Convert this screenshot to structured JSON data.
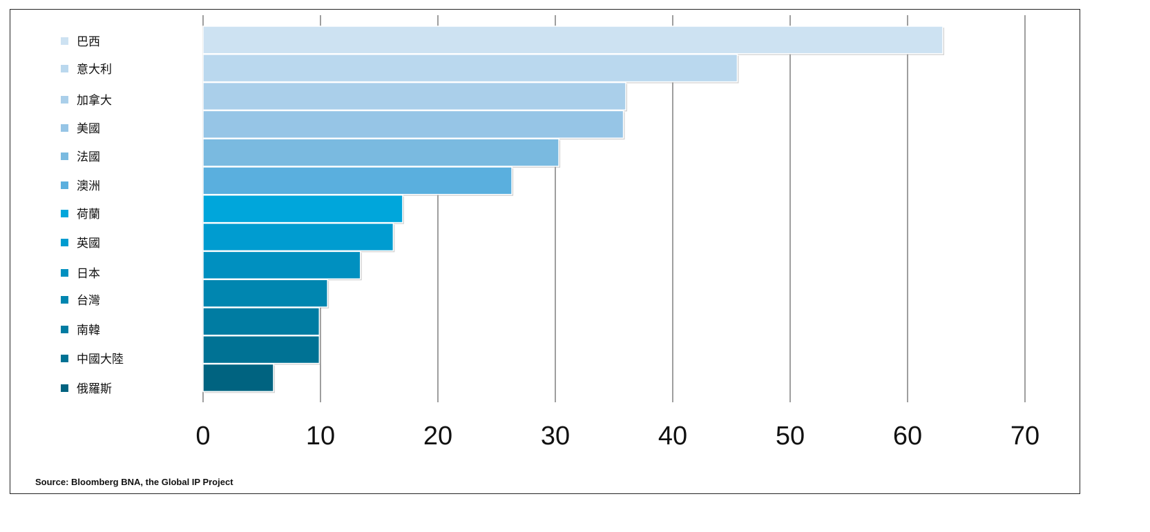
{
  "chart_data": {
    "type": "bar",
    "orientation": "horizontal",
    "categories": [
      "巴西",
      "意大利",
      "加拿大",
      "美國",
      "法國",
      "澳洲",
      "荷蘭",
      "英國",
      "日本",
      "台灣",
      "南韓",
      "中國大陸",
      "俄羅斯"
    ],
    "values": [
      63,
      45.5,
      36,
      35.8,
      30.3,
      26.3,
      17,
      16.2,
      13.4,
      10.6,
      9.9,
      9.9,
      6
    ],
    "colors": [
      "#cde2f2",
      "#bad8ee",
      "#aacfea",
      "#96c5e6",
      "#7abae0",
      "#5aafde",
      "#00a6db",
      "#009cd0",
      "#0090c0",
      "#0086b0",
      "#007ca2",
      "#007294",
      "#006380"
    ],
    "xlim": [
      0,
      70
    ],
    "xticks": [
      0,
      10,
      20,
      30,
      40,
      50,
      60,
      70
    ],
    "title": "",
    "xlabel": "",
    "ylabel": "",
    "grid": true,
    "legend_position": "left"
  },
  "source": "Source: Bloomberg BNA, the Global IP Project"
}
